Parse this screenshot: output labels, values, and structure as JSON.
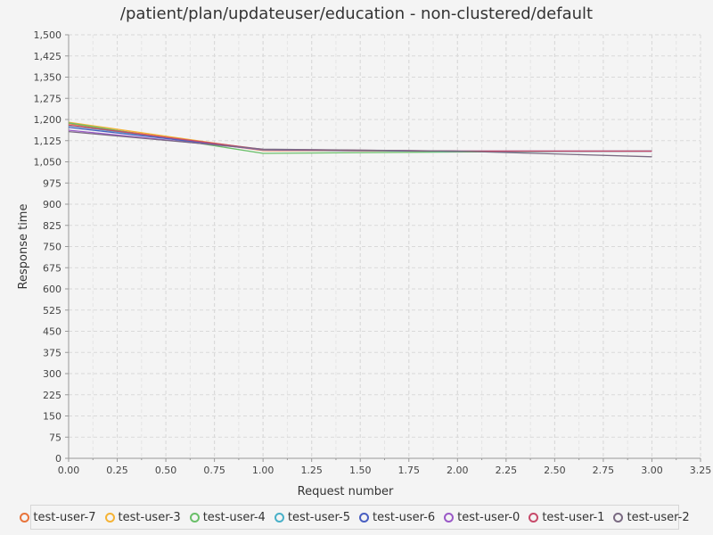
{
  "chart_data": {
    "type": "line",
    "title": "/patient/plan/updateuser/education - non-clustered/default",
    "xlabel": "Request number",
    "ylabel": "Response time",
    "xlim": [
      0,
      3.25
    ],
    "ylim": [
      0,
      1500
    ],
    "x_ticks": [
      "0.00",
      "0.25",
      "0.50",
      "0.75",
      "1.00",
      "1.25",
      "1.50",
      "1.75",
      "2.00",
      "2.25",
      "2.50",
      "2.75",
      "3.00",
      "3.25"
    ],
    "y_ticks": [
      "0",
      "75",
      "150",
      "225",
      "300",
      "375",
      "450",
      "525",
      "600",
      "675",
      "750",
      "825",
      "900",
      "975",
      "1,050",
      "1,125",
      "1,200",
      "1,275",
      "1,350",
      "1,425",
      "1,500"
    ],
    "grid": true,
    "legend_position": "bottom",
    "x": [
      0,
      1,
      2,
      3
    ],
    "series": [
      {
        "name": "test-user-7",
        "color": "#e8743b",
        "values": [
          1185,
          1090,
          1088,
          1088
        ]
      },
      {
        "name": "test-user-3",
        "color": "#f5b335",
        "values": [
          1190,
          1092,
          1087,
          1088
        ]
      },
      {
        "name": "test-user-4",
        "color": "#6abf69",
        "values": [
          1188,
          1080,
          1085,
          1088
        ]
      },
      {
        "name": "test-user-5",
        "color": "#48b0c8",
        "values": [
          1178,
          1092,
          1087,
          1088
        ]
      },
      {
        "name": "test-user-6",
        "color": "#4a5fc1",
        "values": [
          1172,
          1093,
          1088,
          1088
        ]
      },
      {
        "name": "test-user-0",
        "color": "#9a59c7",
        "values": [
          1162,
          1093,
          1088,
          1088
        ]
      },
      {
        "name": "test-user-1",
        "color": "#c74a6a",
        "values": [
          1180,
          1094,
          1088,
          1088
        ]
      },
      {
        "name": "test-user-2",
        "color": "#7a6a82",
        "values": [
          1157,
          1095,
          1088,
          1068
        ]
      }
    ]
  }
}
